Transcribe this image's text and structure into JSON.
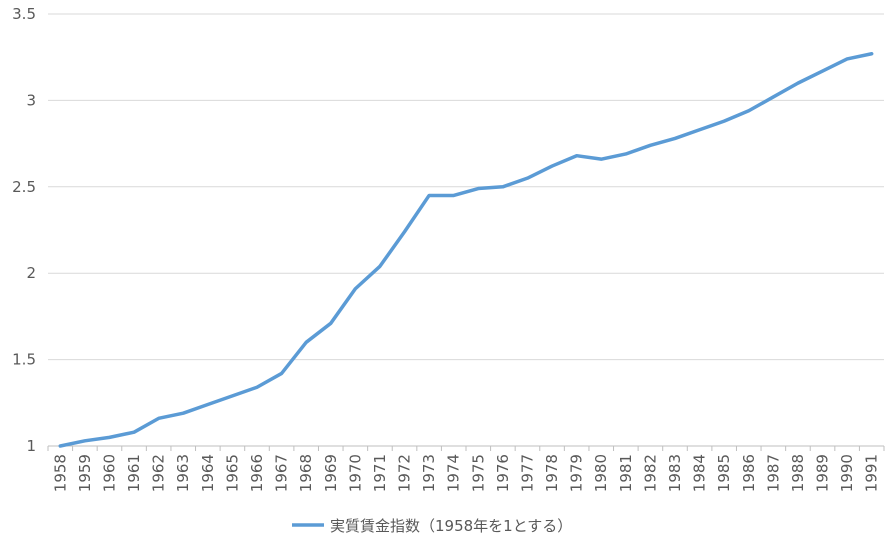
{
  "chart_data": {
    "type": "line",
    "x": [
      "1958",
      "1959",
      "1960",
      "1961",
      "1962",
      "1963",
      "1964",
      "1965",
      "1966",
      "1967",
      "1968",
      "1969",
      "1970",
      "1971",
      "1972",
      "1973",
      "1974",
      "1975",
      "1976",
      "1977",
      "1978",
      "1979",
      "1980",
      "1981",
      "1982",
      "1983",
      "1984",
      "1985",
      "1986",
      "1987",
      "1988",
      "1989",
      "1990",
      "1991"
    ],
    "series": [
      {
        "name": "実質賃金指数（1958年を1とする）",
        "color": "#5b9bd5",
        "values": [
          1.0,
          1.03,
          1.05,
          1.08,
          1.16,
          1.19,
          1.24,
          1.29,
          1.34,
          1.42,
          1.6,
          1.71,
          1.91,
          2.04,
          2.24,
          2.45,
          2.45,
          2.49,
          2.5,
          2.55,
          2.62,
          2.68,
          2.66,
          2.69,
          2.74,
          2.78,
          2.83,
          2.88,
          2.94,
          3.02,
          3.1,
          3.17,
          3.24,
          3.27
        ]
      }
    ],
    "yticks": [
      "1",
      "1.5",
      "2",
      "2.5",
      "3",
      "3.5"
    ],
    "ylim": [
      1,
      3.5
    ],
    "grid": true,
    "legend_position": "bottom"
  }
}
